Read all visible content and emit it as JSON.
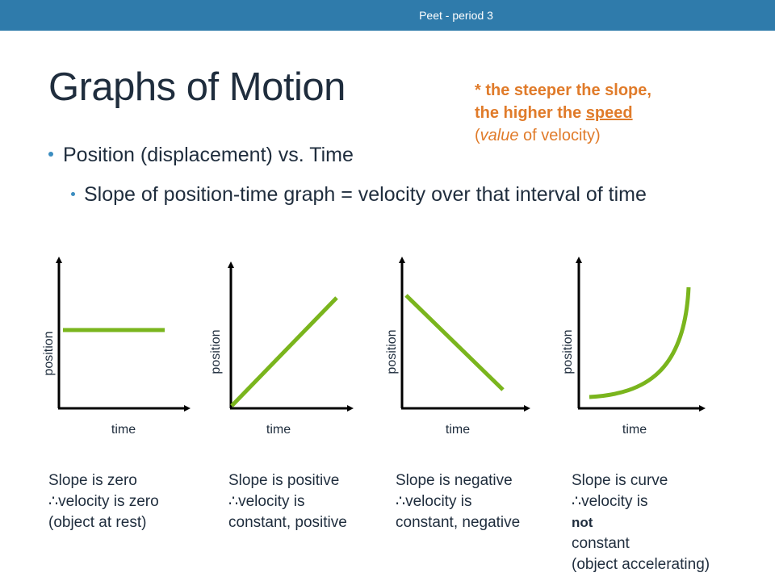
{
  "header": {
    "text": "Peet - period 3"
  },
  "title": "Graphs of Motion",
  "note": {
    "line1": "* the steeper the slope,",
    "line2_prefix": "the higher the ",
    "line2_underlined": "speed",
    "line3_open": "(",
    "line3_italic": "value",
    "line3_rest": " of velocity)"
  },
  "bullets": {
    "level1": "Position (displacement) vs. Time",
    "level2": "Slope of position-time graph = velocity over that interval of time"
  },
  "graphs": [
    {
      "ylabel": "position",
      "xlabel": "time",
      "shape": "flat",
      "caption": {
        "line1": "Slope is zero",
        "line2": "∴velocity is zero",
        "line3": "(object at rest)"
      }
    },
    {
      "ylabel": "position",
      "xlabel": "time",
      "shape": "rising",
      "caption": {
        "line1": "Slope is positive",
        "line2": "∴velocity is",
        "line3": "constant, positive"
      }
    },
    {
      "ylabel": "position",
      "xlabel": "time",
      "shape": "falling",
      "caption": {
        "line1": "Slope is negative",
        "line2": "∴velocity is",
        "line3": "constant, negative"
      }
    },
    {
      "ylabel": "position",
      "xlabel": "time",
      "shape": "curve",
      "caption": {
        "line1": "Slope is curve",
        "line2_prefix": "∴velocity is ",
        "line2_bold": "not",
        "line3": "constant",
        "line4": "(object accelerating)"
      }
    }
  ],
  "colors": {
    "header_bar": "#2f7bab",
    "line": "#7ab51d",
    "note": "#e07b2a",
    "bullet": "#3c8dc0"
  }
}
